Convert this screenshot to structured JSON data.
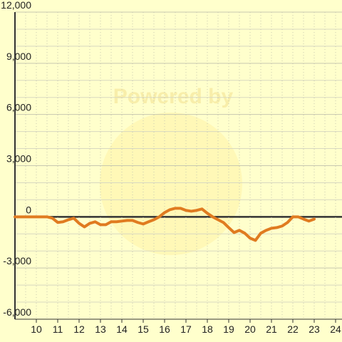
{
  "chart_data": {
    "type": "line",
    "watermark": "Powered by",
    "x": [
      9,
      10.5,
      10.75,
      11,
      11.25,
      11.5,
      11.75,
      12,
      12.25,
      12.5,
      12.75,
      13,
      13.25,
      13.5,
      13.75,
      14,
      14.25,
      14.5,
      14.75,
      15,
      15.25,
      15.5,
      15.75,
      16,
      16.25,
      16.5,
      16.75,
      17,
      17.25,
      17.5,
      17.75,
      18,
      18.25,
      18.5,
      18.75,
      19,
      19.25,
      19.5,
      19.75,
      20,
      20.25,
      20.5,
      20.75,
      21,
      21.25,
      21.5,
      21.75,
      22,
      22.25,
      22.5,
      22.75,
      23
    ],
    "series": [
      {
        "color": "#e07b20",
        "values": [
          0,
          0,
          -80,
          -330,
          -290,
          -170,
          -80,
          -380,
          -590,
          -380,
          -290,
          -460,
          -460,
          -290,
          -290,
          -250,
          -210,
          -210,
          -330,
          -420,
          -290,
          -170,
          0,
          250,
          420,
          500,
          500,
          380,
          330,
          380,
          460,
          210,
          0,
          -170,
          -330,
          -630,
          -920,
          -790,
          -960,
          -1250,
          -1380,
          -960,
          -790,
          -670,
          -630,
          -540,
          -330,
          0,
          0,
          -130,
          -250,
          -130
        ]
      }
    ],
    "xlim": [
      9,
      24.3
    ],
    "xticks": [
      10,
      11,
      12,
      13,
      14,
      15,
      16,
      17,
      18,
      19,
      20,
      21,
      22,
      23,
      24
    ],
    "xminorticks": [
      9.5,
      10.5,
      11.5,
      12.5,
      13.5,
      14.5,
      15.5,
      16.5,
      17.5,
      18.5,
      19.5,
      20.5,
      21.5,
      22.5,
      23.5
    ],
    "ylim": [
      -6000,
      12000
    ],
    "yticks": [
      {
        "value": -6000,
        "label": "-6,000"
      },
      {
        "value": -3000,
        "label": "-3,000"
      },
      0,
      {
        "value": 3000,
        "label": "3,000"
      },
      {
        "value": 6000,
        "label": "6,000"
      },
      {
        "value": 9000,
        "label": "9,000"
      },
      {
        "value": 12000,
        "label": "12,000"
      }
    ],
    "yminorticks": [
      -5000,
      -4000,
      -2000,
      -1000,
      1000,
      2000,
      4000,
      5000,
      7000,
      8000,
      10000,
      11000
    ],
    "grid": true
  }
}
